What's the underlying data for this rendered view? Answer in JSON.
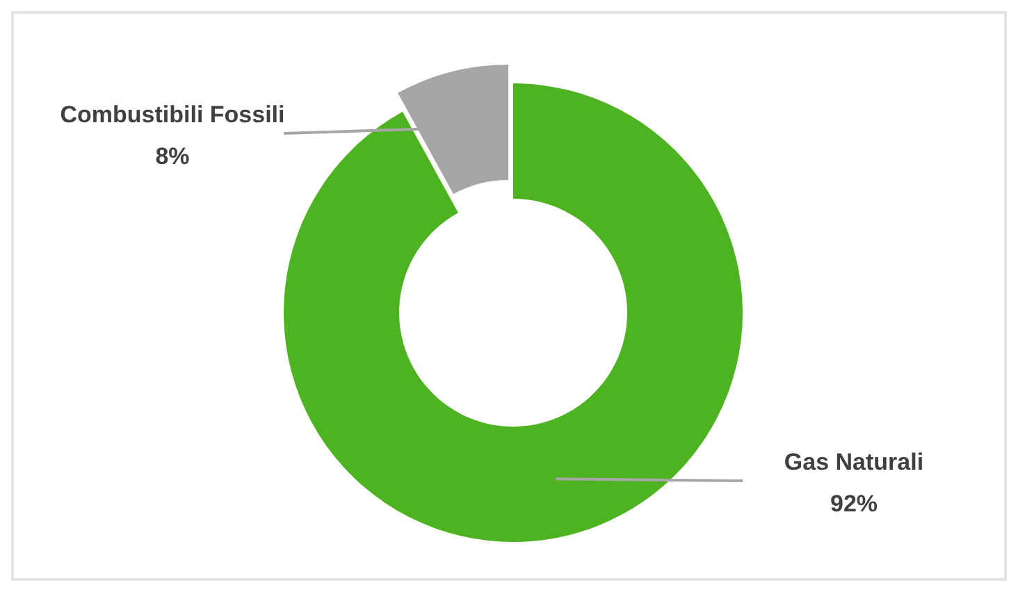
{
  "chart_data": {
    "type": "donut",
    "categories": [
      "Gas Naturali",
      "Combustibili Fossili"
    ],
    "values": [
      92,
      8
    ],
    "colors": [
      "#4db321",
      "#a6a6a6"
    ],
    "value_labels": [
      "92%",
      "8%"
    ]
  }
}
